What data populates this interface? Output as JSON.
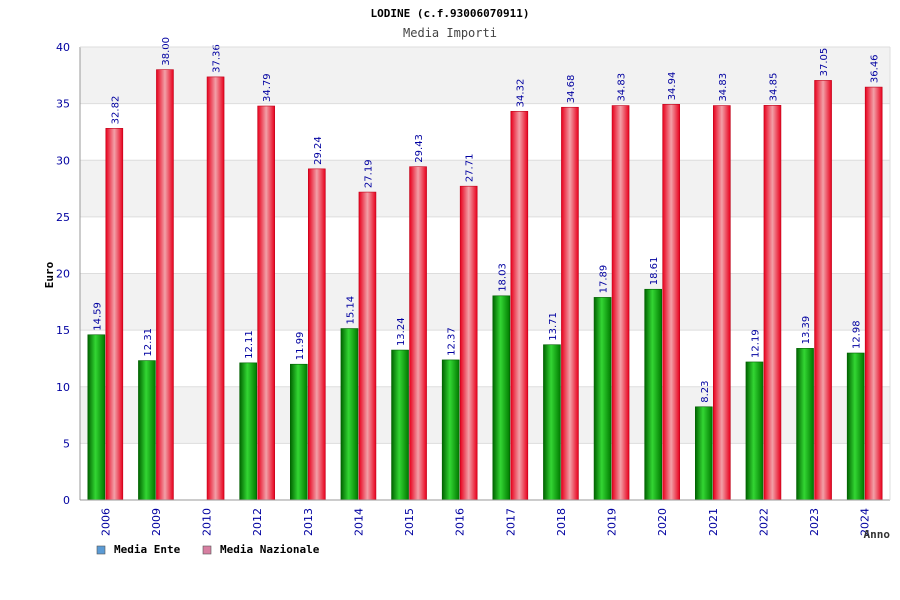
{
  "chart_data": {
    "type": "bar",
    "title": "LODINE (c.f.93006070911)",
    "subtitle": "Media Importi",
    "xlabel": "Anno",
    "ylabel": "Euro",
    "ylim": [
      0,
      40
    ],
    "yticks": [
      0,
      5,
      10,
      15,
      20,
      25,
      30,
      35,
      40
    ],
    "grid": true,
    "legend_position": "bottom-left",
    "categories": [
      "2006",
      "2009",
      "2010",
      "2012",
      "2013",
      "2014",
      "2015",
      "2016",
      "2017",
      "2018",
      "2019",
      "2020",
      "2021",
      "2022",
      "2023",
      "2024"
    ],
    "series": [
      {
        "name": "Media Ente",
        "color": "#00a000",
        "legend_color": "#5b9bd5",
        "values": [
          14.59,
          12.31,
          null,
          12.11,
          11.99,
          15.14,
          13.24,
          12.37,
          18.03,
          13.71,
          17.89,
          18.61,
          8.23,
          12.19,
          13.39,
          12.98
        ],
        "labels": [
          "14.59",
          "12.31",
          null,
          "12.11",
          "11.99",
          "15.14",
          "13.24",
          "12.37",
          "18.03",
          "13.71",
          "17.89",
          "18.61",
          "8.23",
          "12.19",
          "13.39",
          "12.98"
        ]
      },
      {
        "name": "Media Nazionale",
        "color": "#e8001c",
        "legend_color": "#d77fa1",
        "values": [
          32.82,
          38.0,
          37.36,
          34.79,
          29.24,
          27.19,
          29.43,
          27.71,
          34.32,
          34.68,
          34.83,
          34.94,
          34.83,
          34.85,
          37.05,
          36.46
        ],
        "labels": [
          "32.82",
          "38.00",
          "37.36",
          "34.79",
          "29.24",
          "27.19",
          "29.43",
          "27.71",
          "34.32",
          "34.68",
          "34.83",
          "34.94",
          "34.83",
          "34.85",
          "37.05",
          "36.46"
        ]
      }
    ]
  }
}
